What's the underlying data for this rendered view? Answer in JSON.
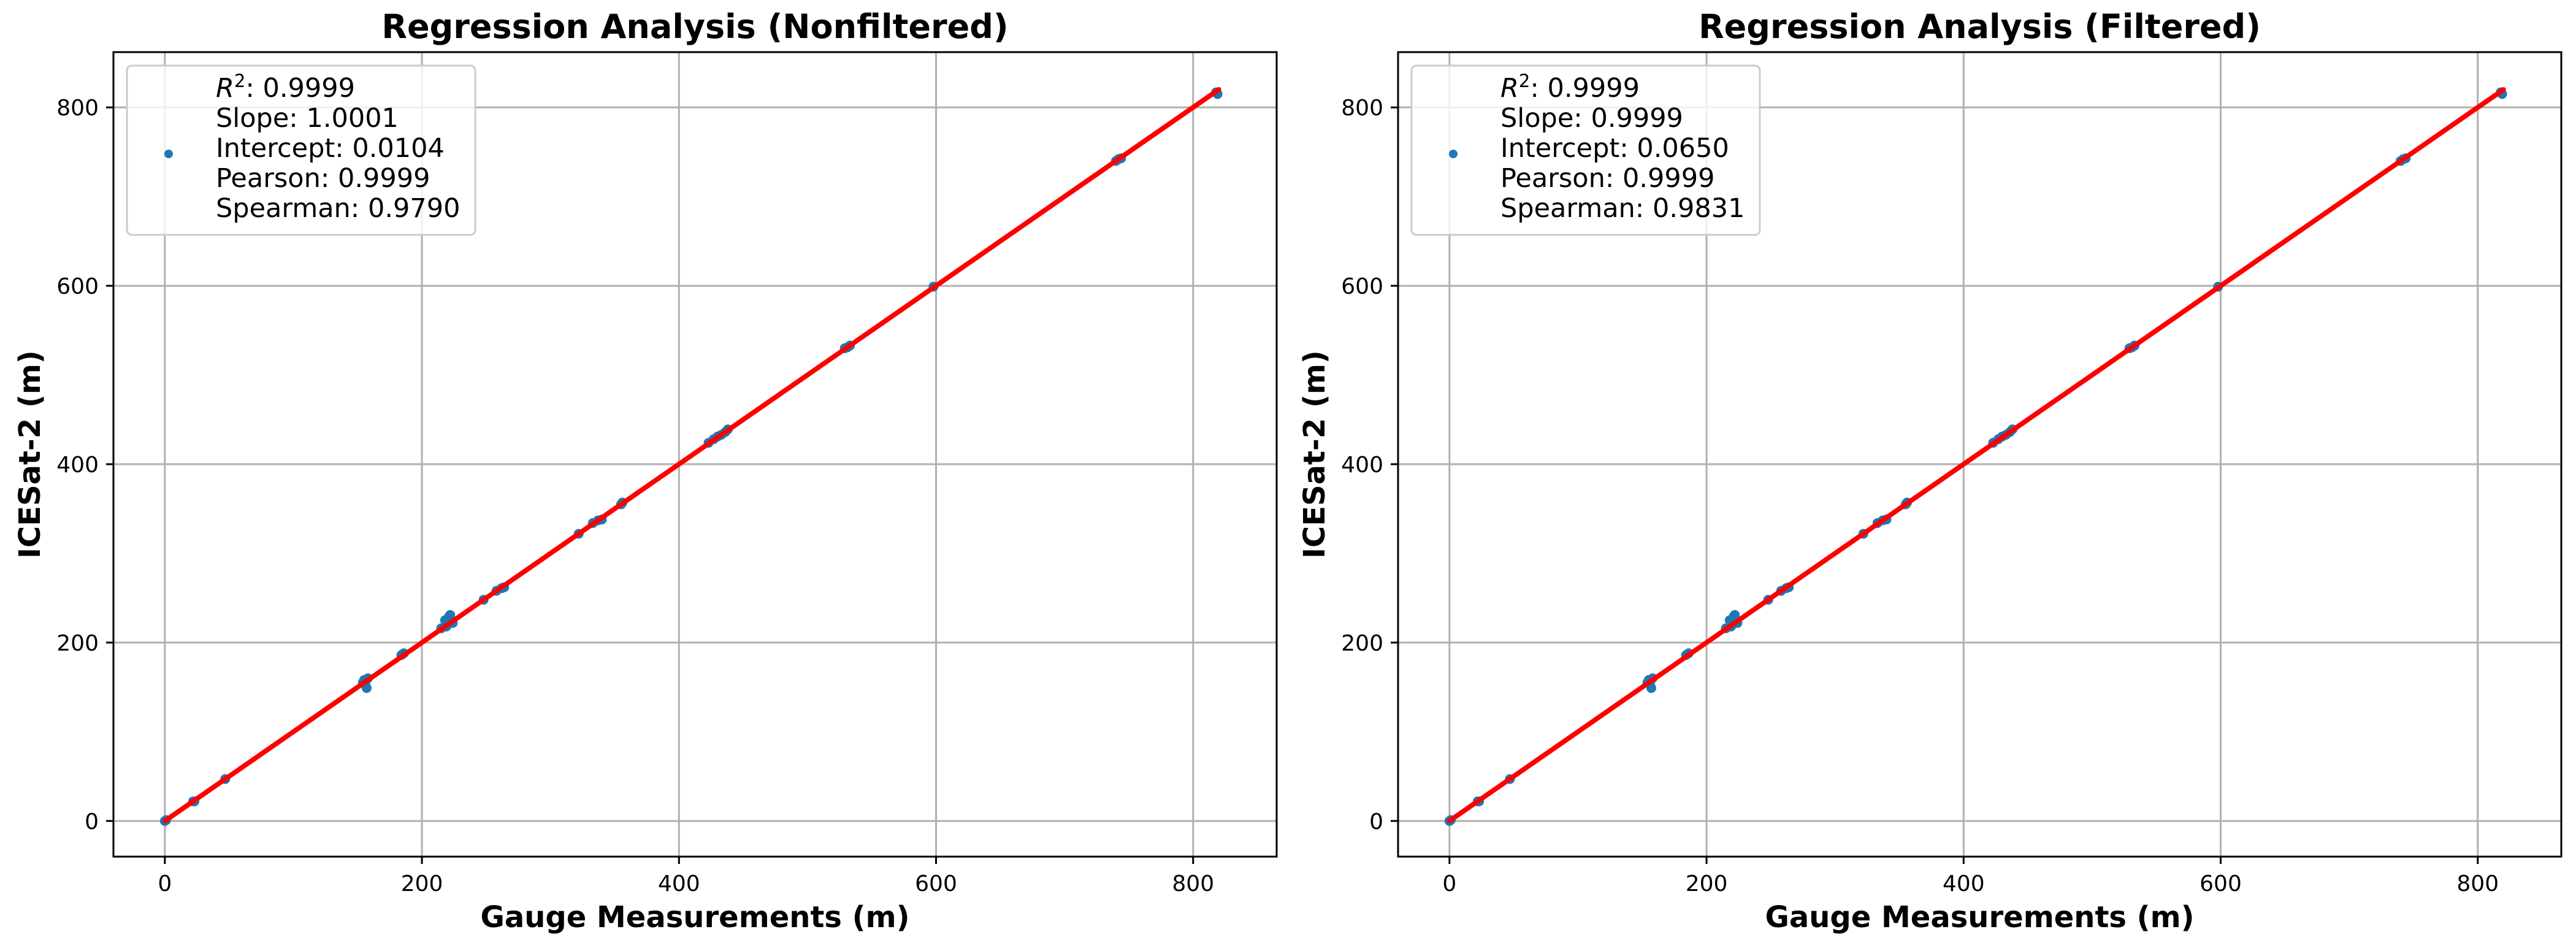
{
  "chart_data": [
    {
      "type": "scatter",
      "title": "Regression Analysis (Nonfiltered)",
      "xlabel": "Gauge Measurements (m)",
      "ylabel": "ICESat-2 (m)",
      "xlim": [
        -40,
        865
      ],
      "ylim": [
        -40,
        862
      ],
      "xticks": [
        0,
        200,
        400,
        600,
        800
      ],
      "yticks": [
        0,
        200,
        400,
        600,
        800
      ],
      "xtick_labels": [
        "0",
        "200",
        "400",
        "600",
        "800"
      ],
      "ytick_labels": [
        "0",
        "200",
        "400",
        "600",
        "800"
      ],
      "grid": true,
      "legend_position": "upper-left",
      "legend": {
        "r2_symbol": "R",
        "r2_sup": "2",
        "r2_value": ": 0.9999",
        "lines": [
          "Slope: 1.0001",
          "Intercept: 0.0104",
          "Pearson: 0.9999",
          "Spearman: 0.9790"
        ]
      },
      "regression": {
        "slope": 1.0001,
        "intercept": 0.0104,
        "x_range": [
          0,
          820
        ],
        "color": "#ff0000"
      },
      "point_color": "#1f77b4",
      "points": [
        [
          0,
          0
        ],
        [
          1,
          1
        ],
        [
          22,
          22
        ],
        [
          23,
          22
        ],
        [
          47,
          47
        ],
        [
          155,
          158
        ],
        [
          156,
          153
        ],
        [
          157,
          149
        ],
        [
          154,
          155
        ],
        [
          158,
          160
        ],
        [
          184,
          186
        ],
        [
          186,
          188
        ],
        [
          215,
          216
        ],
        [
          219,
          218
        ],
        [
          220,
          220
        ],
        [
          221,
          229
        ],
        [
          222,
          231
        ],
        [
          218,
          225
        ],
        [
          224,
          222
        ],
        [
          248,
          248
        ],
        [
          258,
          258
        ],
        [
          262,
          261
        ],
        [
          264,
          262
        ],
        [
          322,
          322
        ],
        [
          333,
          334
        ],
        [
          337,
          337
        ],
        [
          340,
          338
        ],
        [
          355,
          355
        ],
        [
          356,
          357
        ],
        [
          423,
          424
        ],
        [
          427,
          428
        ],
        [
          430,
          431
        ],
        [
          433,
          433
        ],
        [
          436,
          436
        ],
        [
          438,
          439
        ],
        [
          529,
          530
        ],
        [
          531,
          531
        ],
        [
          533,
          533
        ],
        [
          598,
          599
        ],
        [
          740,
          740
        ],
        [
          742,
          742
        ],
        [
          744,
          743
        ],
        [
          818,
          817
        ],
        [
          819,
          815
        ]
      ]
    },
    {
      "type": "scatter",
      "title": "Regression Analysis (Filtered)",
      "xlabel": "Gauge Measurements (m)",
      "ylabel": "ICESat-2 (m)",
      "xlim": [
        -40,
        865
      ],
      "ylim": [
        -40,
        862
      ],
      "xticks": [
        0,
        200,
        400,
        600,
        800
      ],
      "yticks": [
        0,
        200,
        400,
        600,
        800
      ],
      "xtick_labels": [
        "0",
        "200",
        "400",
        "600",
        "800"
      ],
      "ytick_labels": [
        "0",
        "200",
        "400",
        "600",
        "800"
      ],
      "grid": true,
      "legend_position": "upper-left",
      "legend": {
        "r2_symbol": "R",
        "r2_sup": "2",
        "r2_value": ": 0.9999",
        "lines": [
          "Slope: 0.9999",
          "Intercept: 0.0650",
          "Pearson: 0.9999",
          "Spearman: 0.9831"
        ]
      },
      "regression": {
        "slope": 0.9999,
        "intercept": 0.065,
        "x_range": [
          0,
          820
        ],
        "color": "#ff0000"
      },
      "point_color": "#1f77b4",
      "points": [
        [
          0,
          0
        ],
        [
          1,
          1
        ],
        [
          22,
          22
        ],
        [
          23,
          22
        ],
        [
          47,
          47
        ],
        [
          155,
          158
        ],
        [
          156,
          153
        ],
        [
          157,
          149
        ],
        [
          154,
          155
        ],
        [
          158,
          160
        ],
        [
          184,
          186
        ],
        [
          186,
          188
        ],
        [
          215,
          216
        ],
        [
          219,
          218
        ],
        [
          220,
          220
        ],
        [
          221,
          229
        ],
        [
          222,
          231
        ],
        [
          218,
          225
        ],
        [
          224,
          222
        ],
        [
          248,
          248
        ],
        [
          258,
          258
        ],
        [
          262,
          261
        ],
        [
          264,
          262
        ],
        [
          322,
          322
        ],
        [
          333,
          334
        ],
        [
          337,
          337
        ],
        [
          340,
          338
        ],
        [
          355,
          355
        ],
        [
          356,
          357
        ],
        [
          423,
          424
        ],
        [
          427,
          428
        ],
        [
          430,
          431
        ],
        [
          433,
          433
        ],
        [
          436,
          436
        ],
        [
          438,
          439
        ],
        [
          529,
          530
        ],
        [
          531,
          531
        ],
        [
          533,
          533
        ],
        [
          598,
          599
        ],
        [
          740,
          740
        ],
        [
          742,
          742
        ],
        [
          744,
          743
        ],
        [
          818,
          817
        ],
        [
          819,
          815
        ]
      ]
    }
  ]
}
